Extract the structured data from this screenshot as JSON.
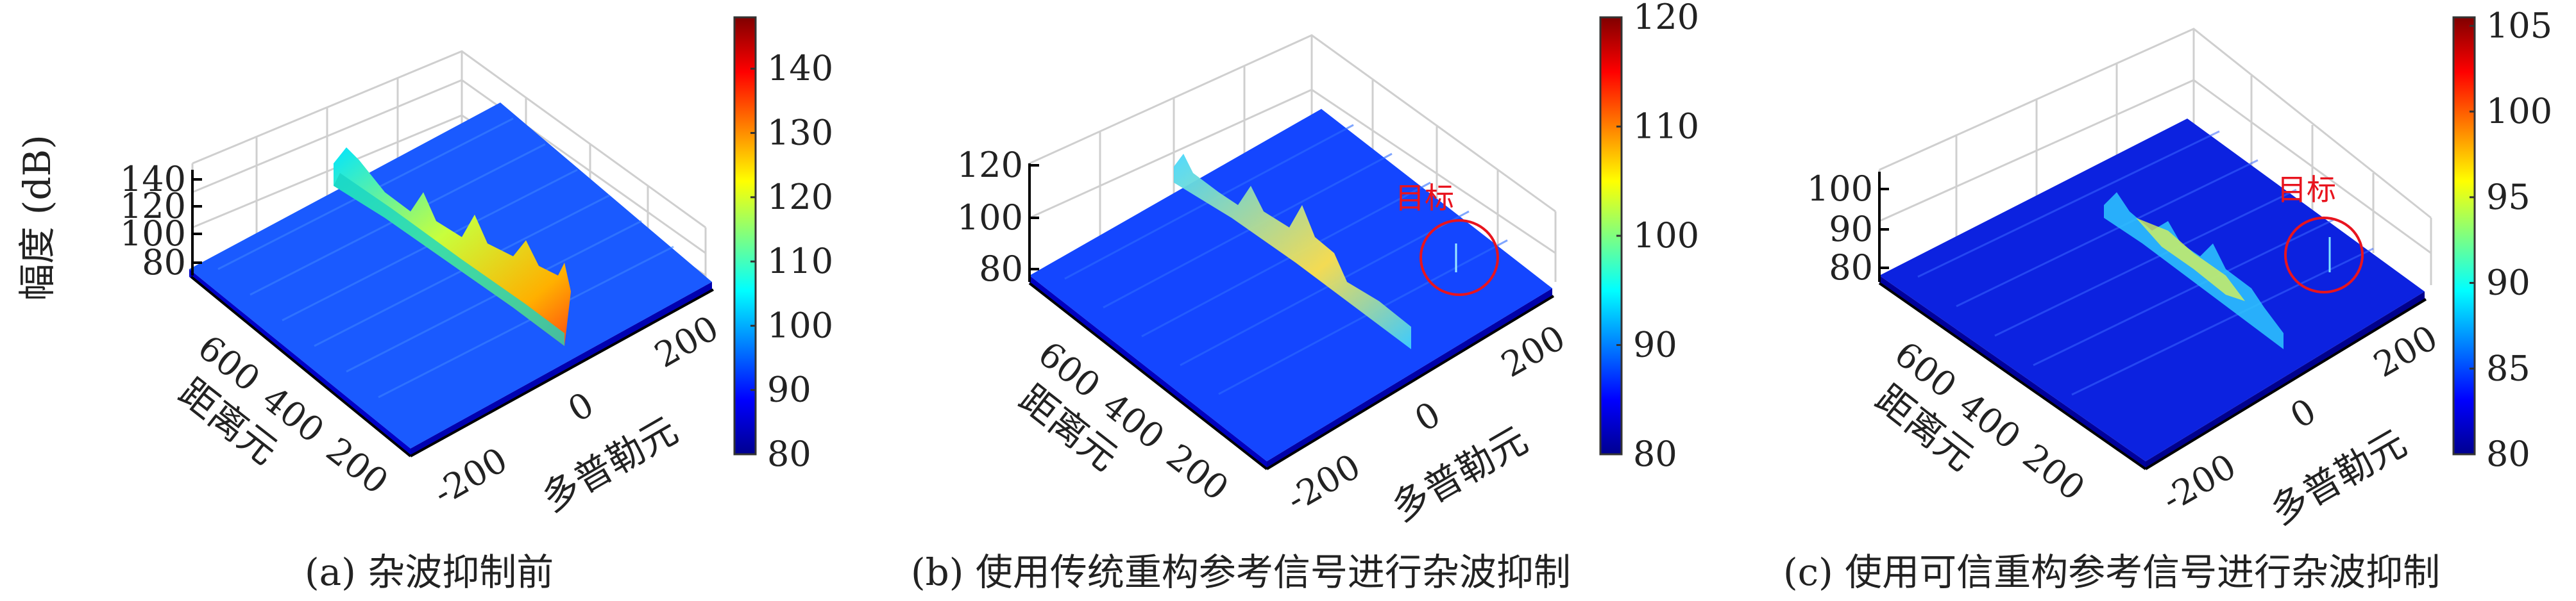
{
  "chart_data": [
    {
      "type": "surface",
      "caption": "(a) 杂波抑制前",
      "zlabel": "幅度 (dB)",
      "xlabel": "多普勒元",
      "ylabel": "距离元",
      "xticks": [
        "-200",
        "0",
        "200"
      ],
      "yticks": [
        "600",
        "400",
        "200"
      ],
      "zticks": [
        "140",
        "120",
        "100",
        "80"
      ],
      "colorbar_ticks": [
        "140",
        "130",
        "120",
        "110",
        "100",
        "90",
        "80"
      ],
      "colorbar_range": [
        80,
        148
      ],
      "features": {
        "clutter_ridge_peak_db": 135,
        "floor_db": 92
      }
    },
    {
      "type": "surface",
      "caption": "(b) 使用传统重构参考信号进行杂波抑制",
      "zlabel": "",
      "xlabel": "多普勒元",
      "ylabel": "距离元",
      "xticks": [
        "-200",
        "0",
        "200"
      ],
      "yticks": [
        "600",
        "400",
        "200"
      ],
      "zticks": [
        "120",
        "100",
        "80"
      ],
      "colorbar_ticks": [
        "120",
        "110",
        "100",
        "90",
        "80"
      ],
      "colorbar_range": [
        80,
        120
      ],
      "annotation": "目标",
      "features": {
        "clutter_ridge_peak_db": 112,
        "floor_db": 88
      }
    },
    {
      "type": "surface",
      "caption": "(c) 使用可信重构参考信号进行杂波抑制",
      "zlabel": "",
      "xlabel": "多普勒元",
      "ylabel": "距离元",
      "xticks": [
        "-200",
        "0",
        "200"
      ],
      "yticks": [
        "600",
        "400",
        "200"
      ],
      "zticks": [
        "100",
        "90",
        "80"
      ],
      "colorbar_ticks": [
        "105",
        "100",
        "95",
        "90",
        "85",
        "80"
      ],
      "colorbar_range": [
        80,
        105.5
      ],
      "annotation": "目标",
      "features": {
        "clutter_ridge_peak_db": 96,
        "floor_db": 84
      }
    }
  ]
}
